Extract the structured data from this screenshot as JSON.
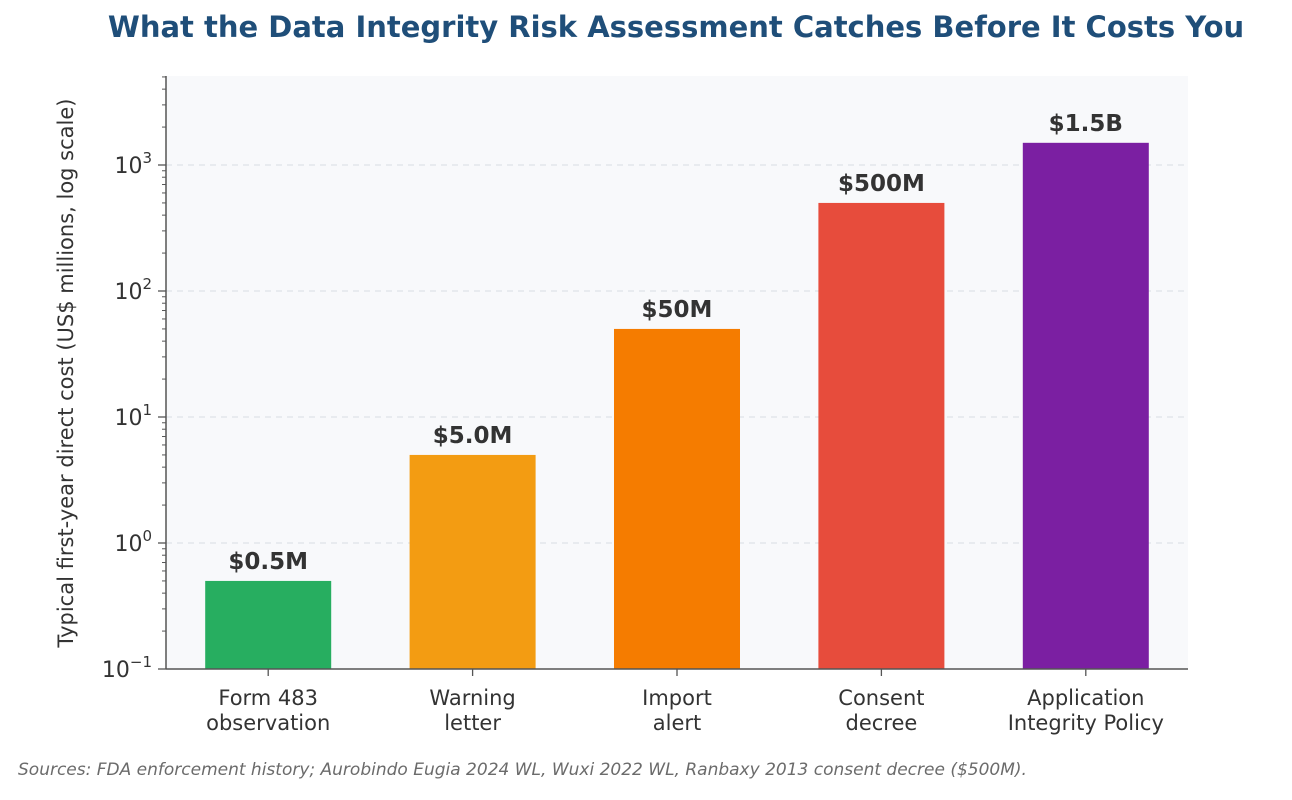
{
  "chart_data": {
    "type": "bar",
    "title": "What the Data Integrity Risk Assessment Catches Before It Costs You",
    "ylabel": "Typical first-year direct cost (US$ millions, log scale)",
    "xlabel": "",
    "yscale": "log",
    "ylim": [
      0.1,
      5000
    ],
    "grid": "horizontal dashed",
    "categories": [
      [
        "Form 483",
        "observation"
      ],
      [
        "Warning",
        "letter"
      ],
      [
        "Import",
        "alert"
      ],
      [
        "Consent",
        "decree"
      ],
      [
        "Application",
        "Integrity Policy"
      ]
    ],
    "values": [
      0.5,
      5,
      50,
      500,
      1500
    ],
    "data_labels": [
      "$0.5M",
      "$5.0M",
      "$50M",
      "$500M",
      "$1.5B"
    ],
    "colors": [
      "#27ae60",
      "#f39c12",
      "#f57c00",
      "#e74c3c",
      "#7b1fa2"
    ],
    "y_ticks": [
      {
        "value": 0.1,
        "base": "10",
        "exp": "−1"
      },
      {
        "value": 1,
        "base": "10",
        "exp": "0"
      },
      {
        "value": 10,
        "base": "10",
        "exp": "1"
      },
      {
        "value": 100,
        "base": "10",
        "exp": "2"
      },
      {
        "value": 1000,
        "base": "10",
        "exp": "3"
      }
    ]
  },
  "source_note": "Sources: FDA enforcement history; Aurobindo Eugia 2024 WL, Wuxi 2022 WL, Ranbaxy 2013 consent decree ($500M)."
}
